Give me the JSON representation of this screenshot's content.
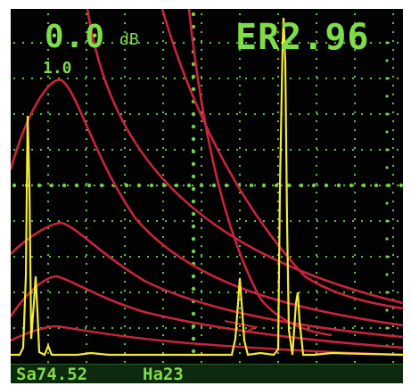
{
  "display": {
    "gain_value": "0.0",
    "gain_unit": "dB",
    "er_readout": "ER2.96",
    "scale_label": "1.0",
    "sa_readout": "Sa74.52",
    "ha_readout": "Ha23"
  },
  "colors": {
    "background": "#020202",
    "text": "#7fdc4a",
    "grid": "#6fd24a",
    "dac_curves": "#c8243c",
    "ascan_trace": "#f2ea3a",
    "status_bar": "#0e2a0e"
  }
}
